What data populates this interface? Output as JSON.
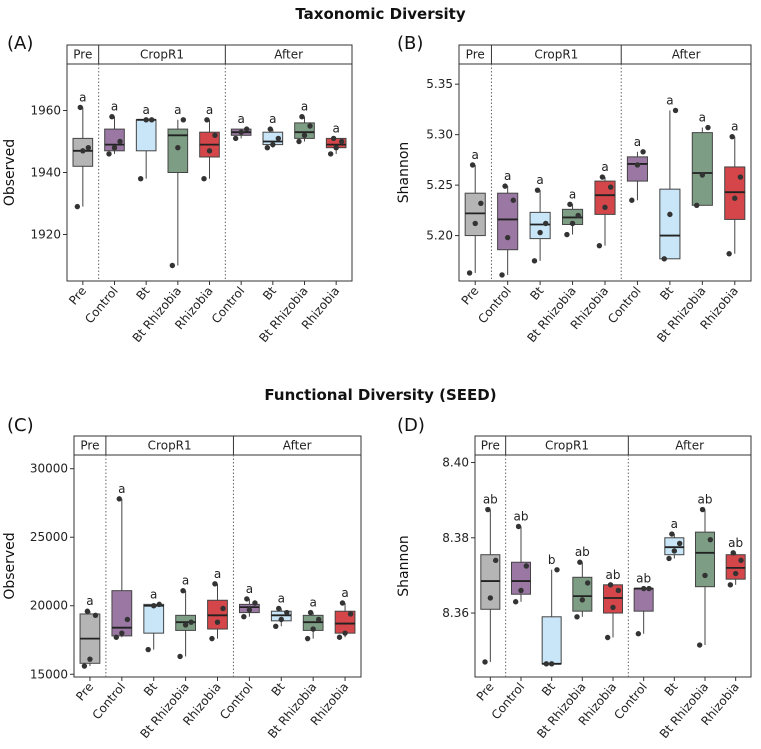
{
  "section_titles": {
    "top": "Taxonomic Diversity",
    "bottom": "Functional Diversity (SEED)"
  },
  "chart_data": [
    {
      "panel": "(A)",
      "type": "box",
      "ylabel": "Observed",
      "ylim": [
        1905,
        1975
      ],
      "yticks": [
        1920,
        1940,
        1960
      ],
      "ytick_labels": [
        "1920",
        "1940",
        "1960"
      ],
      "strips": [
        "Pre",
        "CropR1",
        "After"
      ],
      "categories": [
        "Pre",
        "Control",
        "Bt",
        "Bt Rhizobia",
        "Rhizobia",
        "Control",
        "Bt",
        "Bt Rhizobia",
        "Rhizobia"
      ],
      "groups": [
        1,
        4,
        4
      ],
      "boxes": [
        {
          "fill": "#b5b5b5",
          "q1": 1942,
          "median": 1947,
          "q3": 1951,
          "whisker_low": 1929,
          "whisker_high": 1961,
          "points": [
            1929,
            1947,
            1948,
            1961
          ],
          "letter": "a"
        },
        {
          "fill": "#9b78a3",
          "q1": 1947,
          "median": 1949,
          "q3": 1954,
          "whisker_low": 1946,
          "whisker_high": 1958,
          "points": [
            1946,
            1948,
            1950,
            1958
          ],
          "letter": "a"
        },
        {
          "fill": "#c8e6f7",
          "q1": 1947,
          "median": 1957,
          "q3": 1957,
          "whisker_low": 1938,
          "whisker_high": 1957,
          "points": [
            1938,
            1957,
            1957
          ],
          "letter": "a"
        },
        {
          "fill": "#7d9e84",
          "q1": 1940,
          "median": 1952,
          "q3": 1954,
          "whisker_low": 1910,
          "whisker_high": 1957,
          "points": [
            1910,
            1948,
            1957
          ],
          "letter": "a"
        },
        {
          "fill": "#d4464a",
          "q1": 1945,
          "median": 1949,
          "q3": 1953,
          "whisker_low": 1938,
          "whisker_high": 1957,
          "points": [
            1938,
            1947,
            1952,
            1957
          ],
          "letter": "a"
        },
        {
          "fill": "#9b78a3",
          "q1": 1952,
          "median": 1953,
          "q3": 1954,
          "whisker_low": 1951,
          "whisker_high": 1954,
          "points": [
            1951,
            1953,
            1954
          ],
          "letter": "a"
        },
        {
          "fill": "#c8e6f7",
          "q1": 1949,
          "median": 1950,
          "q3": 1953,
          "whisker_low": 1948,
          "whisker_high": 1954,
          "points": [
            1948,
            1949,
            1951,
            1954
          ],
          "letter": "a"
        },
        {
          "fill": "#7d9e84",
          "q1": 1951,
          "median": 1953,
          "q3": 1956,
          "whisker_low": 1950,
          "whisker_high": 1958,
          "points": [
            1950,
            1952,
            1955,
            1958
          ],
          "letter": "a"
        },
        {
          "fill": "#d4464a",
          "q1": 1948,
          "median": 1949,
          "q3": 1951,
          "whisker_low": 1946,
          "whisker_high": 1951,
          "points": [
            1946,
            1948,
            1950,
            1951
          ],
          "letter": "a"
        }
      ]
    },
    {
      "panel": "(B)",
      "type": "box",
      "ylabel": "Shannon",
      "ylim": [
        5.155,
        5.37
      ],
      "yticks": [
        5.2,
        5.25,
        5.3,
        5.35
      ],
      "ytick_labels": [
        "5.20",
        "5.25",
        "5.30",
        "5.35"
      ],
      "strips": [
        "Pre",
        "CropR1",
        "After"
      ],
      "categories": [
        "Pre",
        "Control",
        "Bt",
        "Bt Rhizobia",
        "Rhizobia",
        "Control",
        "Bt",
        "Bt Rhizobia",
        "Rhizobia"
      ],
      "groups": [
        1,
        4,
        4
      ],
      "boxes": [
        {
          "fill": "#b5b5b5",
          "q1": 5.2,
          "median": 5.222,
          "q3": 5.242,
          "whisker_low": 5.163,
          "whisker_high": 5.27,
          "points": [
            5.163,
            5.212,
            5.232,
            5.27
          ],
          "letter": "a"
        },
        {
          "fill": "#9b78a3",
          "q1": 5.186,
          "median": 5.216,
          "q3": 5.242,
          "whisker_low": 5.161,
          "whisker_high": 5.249,
          "points": [
            5.161,
            5.198,
            5.235,
            5.249
          ],
          "letter": "a"
        },
        {
          "fill": "#c8e6f7",
          "q1": 5.197,
          "median": 5.211,
          "q3": 5.223,
          "whisker_low": 5.175,
          "whisker_high": 5.245,
          "points": [
            5.175,
            5.203,
            5.212,
            5.245
          ],
          "letter": "a"
        },
        {
          "fill": "#7d9e84",
          "q1": 5.211,
          "median": 5.218,
          "q3": 5.226,
          "whisker_low": 5.201,
          "whisker_high": 5.231,
          "points": [
            5.201,
            5.212,
            5.22,
            5.231
          ],
          "letter": "a"
        },
        {
          "fill": "#d4464a",
          "q1": 5.221,
          "median": 5.24,
          "q3": 5.254,
          "whisker_low": 5.19,
          "whisker_high": 5.258,
          "points": [
            5.19,
            5.228,
            5.248,
            5.258
          ],
          "letter": "a"
        },
        {
          "fill": "#9b78a3",
          "q1": 5.254,
          "median": 5.271,
          "q3": 5.278,
          "whisker_low": 5.235,
          "whisker_high": 5.283,
          "points": [
            5.235,
            5.27,
            5.283
          ],
          "letter": "a"
        },
        {
          "fill": "#c8e6f7",
          "q1": 5.177,
          "median": 5.2,
          "q3": 5.246,
          "whisker_low": 5.177,
          "whisker_high": 5.324,
          "points": [
            5.177,
            5.221,
            5.324
          ],
          "letter": "a"
        },
        {
          "fill": "#7d9e84",
          "q1": 5.23,
          "median": 5.262,
          "q3": 5.302,
          "whisker_low": 5.23,
          "whisker_high": 5.307,
          "points": [
            5.23,
            5.26,
            5.307
          ],
          "letter": "a"
        },
        {
          "fill": "#d4464a",
          "q1": 5.216,
          "median": 5.243,
          "q3": 5.268,
          "whisker_low": 5.182,
          "whisker_high": 5.298,
          "points": [
            5.182,
            5.237,
            5.258,
            5.298
          ],
          "letter": "a"
        }
      ]
    },
    {
      "panel": "(C)",
      "type": "box",
      "ylabel": "Observed",
      "ylim": [
        14800,
        31000
      ],
      "yticks": [
        15000,
        20000,
        25000,
        30000
      ],
      "ytick_labels": [
        "15000",
        "20000",
        "25000",
        "30000"
      ],
      "strips": [
        "Pre",
        "CropR1",
        "After"
      ],
      "categories": [
        "Pre",
        "Control",
        "Bt",
        "Bt Rhizobia",
        "Rhizobia",
        "Control",
        "Bt",
        "Bt Rhizobia",
        "Rhizobia"
      ],
      "groups": [
        1,
        4,
        4
      ],
      "boxes": [
        {
          "fill": "#b5b5b5",
          "q1": 15800,
          "median": 17600,
          "q3": 19400,
          "whisker_low": 15600,
          "whisker_high": 19600,
          "points": [
            15600,
            16100,
            19300,
            19600
          ],
          "letter": "a"
        },
        {
          "fill": "#9b78a3",
          "q1": 17800,
          "median": 18400,
          "q3": 21100,
          "whisker_low": 17700,
          "whisker_high": 27800,
          "points": [
            17700,
            18000,
            19000,
            27800
          ],
          "letter": "a"
        },
        {
          "fill": "#c8e6f7",
          "q1": 18000,
          "median": 20000,
          "q3": 20100,
          "whisker_low": 16800,
          "whisker_high": 20100,
          "points": [
            16800,
            20000,
            20100
          ],
          "letter": "a"
        },
        {
          "fill": "#7d9e84",
          "q1": 18200,
          "median": 18800,
          "q3": 19300,
          "whisker_low": 16300,
          "whisker_high": 21100,
          "points": [
            16300,
            18600,
            18800,
            21100
          ],
          "letter": "a"
        },
        {
          "fill": "#d4464a",
          "q1": 18300,
          "median": 19300,
          "q3": 20400,
          "whisker_low": 17600,
          "whisker_high": 21600,
          "points": [
            17600,
            18800,
            19800,
            21600
          ],
          "letter": "a"
        },
        {
          "fill": "#9b78a3",
          "q1": 19500,
          "median": 19900,
          "q3": 20100,
          "whisker_low": 19200,
          "whisker_high": 20500,
          "points": [
            19200,
            19700,
            20200,
            20500
          ],
          "letter": "a"
        },
        {
          "fill": "#c8e6f7",
          "q1": 18900,
          "median": 19300,
          "q3": 19600,
          "whisker_low": 18500,
          "whisker_high": 19800,
          "points": [
            18500,
            19000,
            19500,
            19800
          ],
          "letter": "a"
        },
        {
          "fill": "#7d9e84",
          "q1": 18200,
          "median": 18800,
          "q3": 19300,
          "whisker_low": 17600,
          "whisker_high": 19500,
          "points": [
            17600,
            18300,
            19000,
            19500
          ],
          "letter": "a"
        },
        {
          "fill": "#d4464a",
          "q1": 18000,
          "median": 18700,
          "q3": 19600,
          "whisker_low": 17700,
          "whisker_high": 20200,
          "points": [
            17700,
            18000,
            19400,
            20200
          ],
          "letter": "a"
        }
      ]
    },
    {
      "panel": "(D)",
      "type": "box",
      "ylabel": "Shannon",
      "ylim": [
        8.343,
        8.402
      ],
      "yticks": [
        8.36,
        8.38,
        8.4
      ],
      "ytick_labels": [
        "8.36",
        "8.38",
        "8.40"
      ],
      "strips": [
        "Pre",
        "CropR1",
        "After"
      ],
      "categories": [
        "Pre",
        "Control",
        "Bt",
        "Bt Rhizobia",
        "Rhizobia",
        "Control",
        "Bt",
        "Bt Rhizobia",
        "Rhizobia"
      ],
      "groups": [
        1,
        4,
        4
      ],
      "boxes": [
        {
          "fill": "#b5b5b5",
          "q1": 8.361,
          "median": 8.3685,
          "q3": 8.3755,
          "whisker_low": 8.347,
          "whisker_high": 8.3875,
          "points": [
            8.347,
            8.364,
            8.374,
            8.3875
          ],
          "letter": "ab"
        },
        {
          "fill": "#9b78a3",
          "q1": 8.365,
          "median": 8.3685,
          "q3": 8.3735,
          "whisker_low": 8.363,
          "whisker_high": 8.383,
          "points": [
            8.363,
            8.366,
            8.3725,
            8.383
          ],
          "letter": "ab"
        },
        {
          "fill": "#c8e6f7",
          "q1": 8.3465,
          "median": 8.3465,
          "q3": 8.359,
          "whisker_low": 8.3465,
          "whisker_high": 8.3715,
          "points": [
            8.3465,
            8.3465,
            8.3715
          ],
          "letter": "b"
        },
        {
          "fill": "#7d9e84",
          "q1": 8.3605,
          "median": 8.3645,
          "q3": 8.3695,
          "whisker_low": 8.359,
          "whisker_high": 8.3735,
          "points": [
            8.359,
            8.3635,
            8.368,
            8.3735
          ],
          "letter": "ab"
        },
        {
          "fill": "#d4464a",
          "q1": 8.36,
          "median": 8.364,
          "q3": 8.3675,
          "whisker_low": 8.3535,
          "whisker_high": 8.3675,
          "points": [
            8.3535,
            8.3615,
            8.366,
            8.3675
          ],
          "letter": "ab"
        },
        {
          "fill": "#9b78a3",
          "q1": 8.3605,
          "median": 8.3665,
          "q3": 8.3665,
          "whisker_low": 8.3545,
          "whisker_high": 8.3665,
          "points": [
            8.3545,
            8.3665,
            8.3665
          ],
          "letter": "ab"
        },
        {
          "fill": "#c8e6f7",
          "q1": 8.3755,
          "median": 8.3775,
          "q3": 8.38,
          "whisker_low": 8.3745,
          "whisker_high": 8.381,
          "points": [
            8.3745,
            8.3765,
            8.3785,
            8.381
          ],
          "letter": "a"
        },
        {
          "fill": "#7d9e84",
          "q1": 8.367,
          "median": 8.376,
          "q3": 8.3815,
          "whisker_low": 8.3515,
          "whisker_high": 8.3875,
          "points": [
            8.3515,
            8.37,
            8.3795,
            8.3875
          ],
          "letter": "ab"
        },
        {
          "fill": "#d4464a",
          "q1": 8.369,
          "median": 8.372,
          "q3": 8.3755,
          "whisker_low": 8.3675,
          "whisker_high": 8.376,
          "points": [
            8.3675,
            8.3705,
            8.374,
            8.376
          ],
          "letter": "ab"
        }
      ]
    }
  ]
}
